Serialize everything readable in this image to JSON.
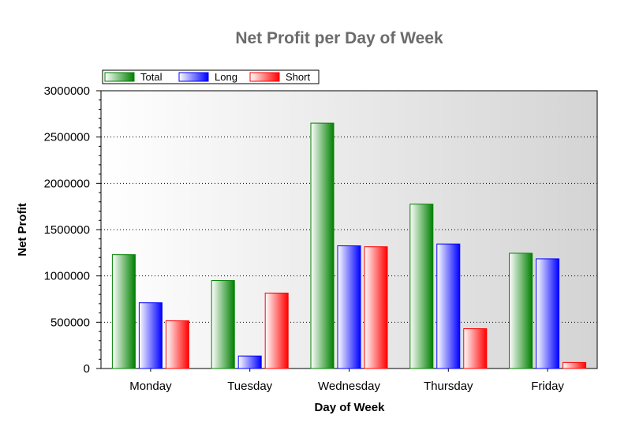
{
  "chart_data": {
    "type": "bar",
    "title": "Net Profit per Day of Week",
    "xlabel": "Day of Week",
    "ylabel": "Net Profit",
    "categories": [
      "Monday",
      "Tuesday",
      "Wednesday",
      "Thursday",
      "Friday"
    ],
    "series": [
      {
        "name": "Total",
        "values": [
          1230000,
          950000,
          2650000,
          1775000,
          1245000
        ]
      },
      {
        "name": "Long",
        "values": [
          710000,
          135000,
          1325000,
          1345000,
          1185000
        ]
      },
      {
        "name": "Short",
        "values": [
          515000,
          815000,
          1315000,
          430000,
          65000
        ]
      }
    ],
    "ylim": [
      0,
      3000000
    ],
    "yticks": [
      "0",
      "500000",
      "1000000",
      "1500000",
      "2000000",
      "2500000",
      "3000000"
    ],
    "grid": true,
    "legend_position": "top-left",
    "colors": {
      "Total": "#008000",
      "Long": "#0000ff",
      "Short": "#ff0000",
      "plot_bg_left": "#ffffff",
      "plot_bg_right": "#d4d4d4",
      "title": "#6b6b6b"
    }
  }
}
